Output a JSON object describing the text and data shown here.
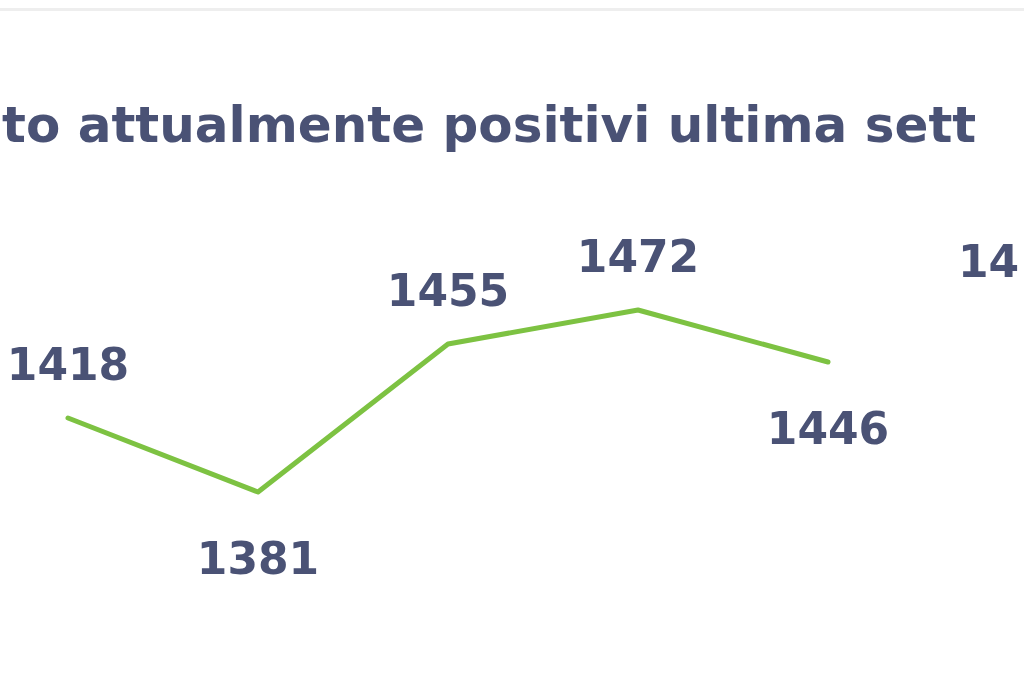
{
  "chart_data": {
    "type": "line",
    "title": "to attualmente positivi ultima sett",
    "categories": [
      null,
      null,
      null,
      null,
      null,
      null,
      null
    ],
    "series": [
      {
        "color": "#7dc242",
        "values": [
          null,
          1418,
          1381,
          1455,
          1472,
          1446,
          null
        ]
      }
    ],
    "data_labels": true,
    "marker": "none",
    "annotations": [
      "14"
    ]
  }
}
